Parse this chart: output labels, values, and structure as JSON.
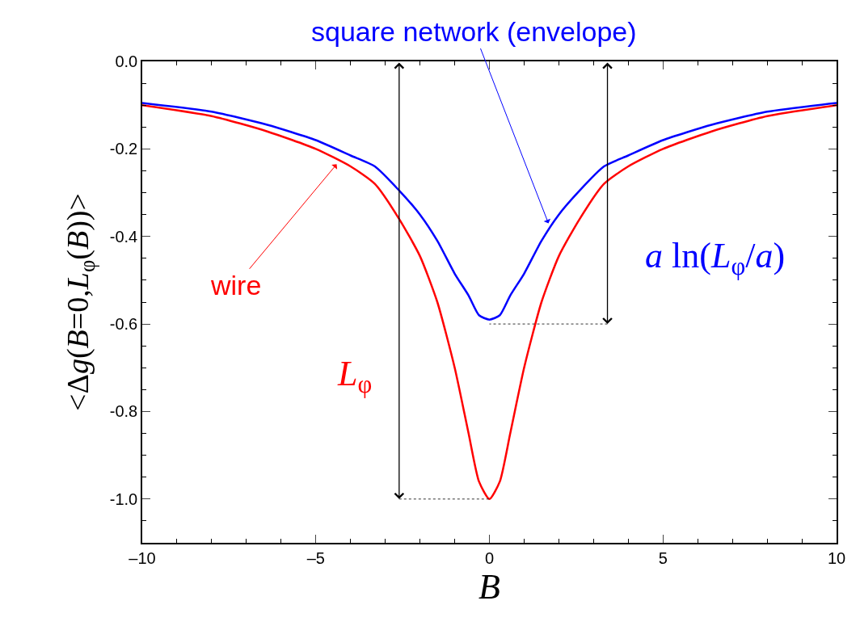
{
  "chart_data": {
    "type": "line",
    "xlabel": "B",
    "ylabel": "<Δg(B=0,L$_{φ}$(B))>",
    "xlim": [
      -10,
      10
    ],
    "xticks": [
      {
        "value": -10,
        "label": "–10"
      },
      {
        "value": -5,
        "label": "–5"
      },
      0,
      5,
      10
    ],
    "ylim": [
      -1.1,
      0
    ],
    "yticks": [
      {
        "value": -1.0,
        "label": "-1.0"
      },
      {
        "value": -0.8,
        "label": "-0.8"
      },
      {
        "value": -0.6,
        "label": "-0.6"
      },
      {
        "value": -0.4,
        "label": "-0.4"
      },
      {
        "value": -0.2,
        "label": "-0.2"
      },
      {
        "value": 0,
        "label": "0.0"
      }
    ],
    "x": [
      -10,
      -8,
      -6.4,
      -5,
      -4,
      -3.3,
      -2.6,
      -2,
      -1.5,
      -1,
      -0.6,
      -0.3,
      0,
      0.3,
      0.6,
      1,
      1.5,
      2,
      2.6,
      3.3,
      4,
      5,
      6.4,
      8,
      10
    ],
    "series": [
      {
        "color": "#ff0000",
        "values": [
          -0.1,
          -0.125,
          -0.16,
          -0.2,
          -0.24,
          -0.28,
          -0.36,
          -0.445,
          -0.55,
          -0.7,
          -0.85,
          -0.96,
          -1.0,
          -0.96,
          -0.85,
          -0.7,
          -0.55,
          -0.445,
          -0.36,
          -0.28,
          -0.24,
          -0.2,
          -0.16,
          -0.125,
          -0.1
        ]
      },
      {
        "color": "#0000ff",
        "values": [
          -0.095,
          -0.115,
          -0.145,
          -0.18,
          -0.215,
          -0.24,
          -0.295,
          -0.35,
          -0.41,
          -0.485,
          -0.535,
          -0.58,
          -0.59,
          -0.58,
          -0.535,
          -0.485,
          -0.41,
          -0.35,
          -0.295,
          -0.24,
          -0.215,
          -0.18,
          -0.145,
          -0.115,
          -0.095
        ]
      }
    ],
    "annotations": [
      {
        "text": "wire",
        "x": -4.4,
        "y": -0.235
      },
      {
        "text": "square network (envelope)",
        "x": 1.7,
        "y": -0.37
      }
    ],
    "ref_lines": [
      {
        "axis": "x",
        "value": -2.6,
        "label": "L$_{φ}$",
        "color": "#000000"
      },
      {
        "axis": "x",
        "value": 3.4,
        "label": "a ln(L$_{φ}$/a)",
        "color": "#000000"
      },
      {
        "axis": "y",
        "value": -1.0,
        "color": "#333333",
        "line_style": "dotted"
      },
      {
        "axis": "y",
        "value": -0.6,
        "color": "#333333",
        "line_style": "dotted"
      }
    ],
    "marker": "none",
    "line_style": "solid",
    "grid": false
  }
}
